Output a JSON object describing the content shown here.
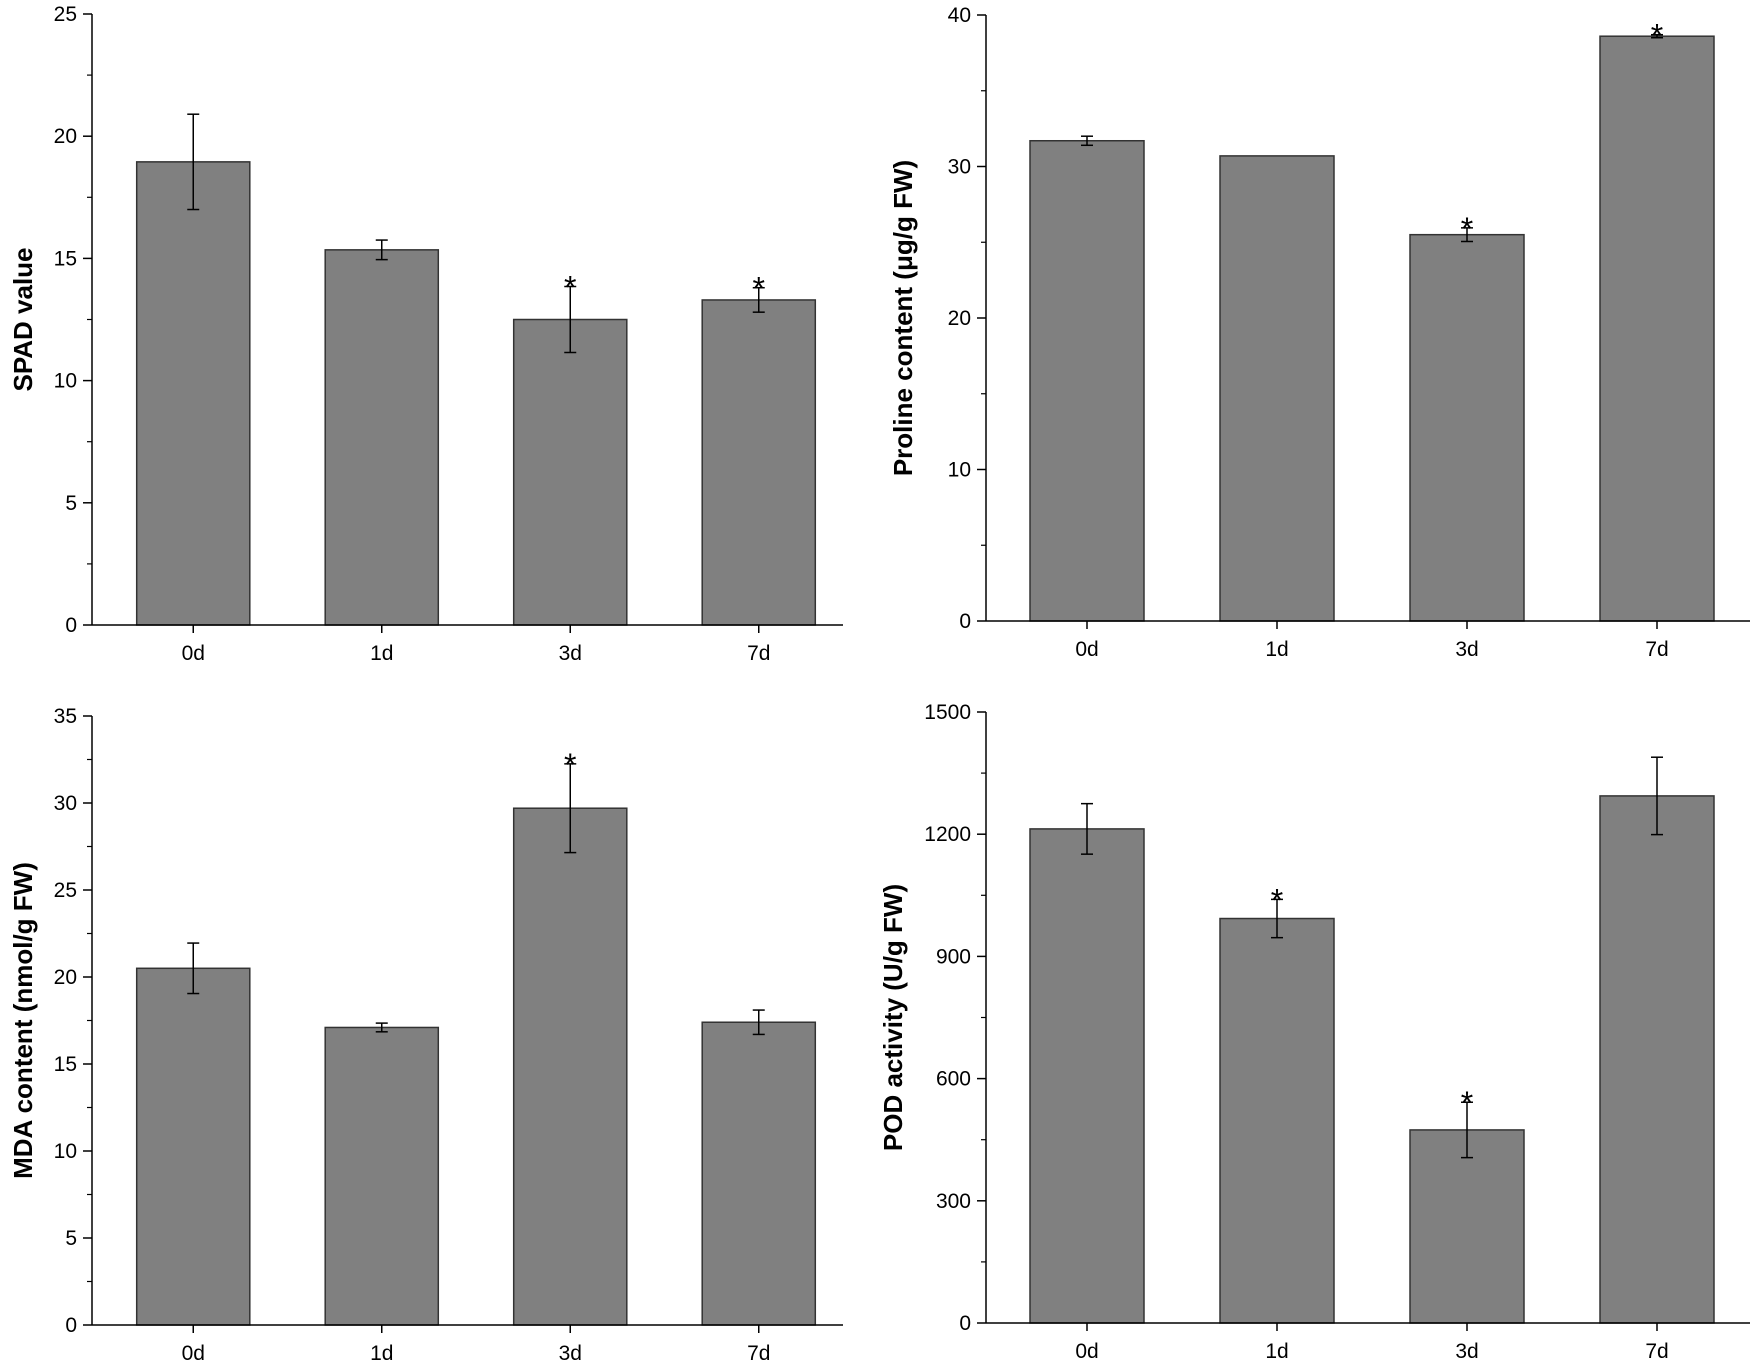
{
  "chart_data": [
    {
      "type": "bar",
      "panel": "top-left",
      "categories": [
        "0d",
        "1d",
        "3d",
        "7d"
      ],
      "values": [
        18.95,
        15.35,
        12.5,
        13.3
      ],
      "errors": [
        1.95,
        0.4,
        1.35,
        0.5
      ],
      "significance": [
        "",
        "",
        "*",
        "*"
      ],
      "ylabel": "SPAD value",
      "ylim": [
        0,
        25
      ],
      "yticks": [
        "0",
        "5",
        "10",
        "15",
        "20",
        "25"
      ]
    },
    {
      "type": "bar",
      "panel": "top-right",
      "categories": [
        "0d",
        "1d",
        "3d",
        "7d"
      ],
      "values": [
        31.7,
        30.7,
        25.5,
        38.6
      ],
      "errors": [
        0.3,
        0.0,
        0.45,
        0.1
      ],
      "significance": [
        "",
        "",
        "*",
        "*"
      ],
      "ylabel": "Proline content (μg/g FW)",
      "ylim": [
        0,
        40
      ],
      "yticks": [
        "0",
        "10",
        "20",
        "30",
        "40"
      ]
    },
    {
      "type": "bar",
      "panel": "bottom-left",
      "categories": [
        "0d",
        "1d",
        "3d",
        "7d"
      ],
      "values": [
        20.5,
        17.1,
        29.7,
        17.4
      ],
      "errors": [
        1.45,
        0.25,
        2.55,
        0.7
      ],
      "significance": [
        "",
        "",
        "*",
        ""
      ],
      "ylabel": "MDA content (nmol/g FW)",
      "ylim": [
        0,
        35
      ],
      "yticks": [
        "0",
        "5",
        "10",
        "15",
        "20",
        "25",
        "30",
        "35"
      ]
    },
    {
      "type": "bar",
      "panel": "bottom-right",
      "categories": [
        "0d",
        "1d",
        "3d",
        "7d"
      ],
      "values": [
        1213,
        993,
        474,
        1294
      ],
      "errors": [
        62,
        47,
        68,
        95
      ],
      "significance": [
        "",
        "*",
        "*",
        ""
      ],
      "ylabel": "POD activity (U/g FW)",
      "ylim": [
        0,
        1500
      ],
      "yticks": [
        "0",
        "300",
        "600",
        "900",
        "1200",
        "1500"
      ]
    }
  ],
  "colors": {
    "bar": "#808080",
    "bar_edge": "#333333",
    "axis": "#000000"
  }
}
